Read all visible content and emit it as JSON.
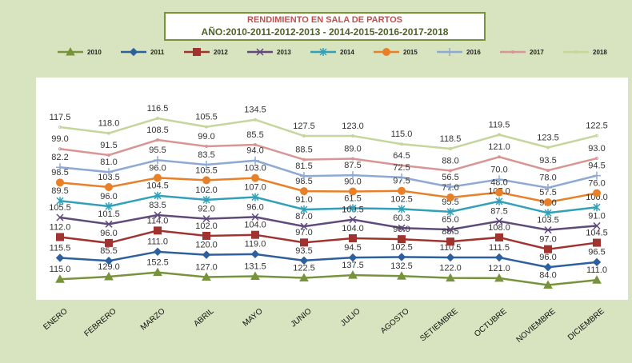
{
  "chart_data": {
    "type": "line",
    "stacked": true,
    "title": "RENDIMIENTO EN SALA DE PARTOS",
    "subtitle": "AÑO:2010-2011-2012-2013 - 2014-2015-2016-2017-2018",
    "categories": [
      "ENERO",
      "FEBRERO",
      "MARZO",
      "ABRIL",
      "MAYO",
      "JUNIO",
      "JULIO",
      "AGOSTO",
      "SETIEMBRE",
      "OCTUBRE",
      "NOVIEMBRE",
      "DICIEMBRE"
    ],
    "series": [
      {
        "name": "2010",
        "color": "#77933c",
        "marker": "triangle",
        "values": [
          115,
          129,
          152.5,
          127,
          131.5,
          122.5,
          137.5,
          132.5,
          122,
          121,
          84,
          111
        ],
        "value_labels": [
          "115.0",
          "129.0",
          "152.5",
          "127.0",
          "131.5",
          "122.5",
          "137.5",
          "132.5",
          "122.0",
          "121.0",
          "84.0",
          "111.0"
        ]
      },
      {
        "name": "2011",
        "color": "#2e5f9e",
        "marker": "diamond",
        "values": [
          115.5,
          85.5,
          111,
          120,
          119,
          93.5,
          94.5,
          102.5,
          110.5,
          111.5,
          96,
          96.5
        ],
        "value_labels": [
          "115.5",
          "85.5",
          "111.0",
          "120.0",
          "119.0",
          "93.5",
          "94.5",
          "102.5",
          "110.5",
          "111.5",
          "96.0",
          "96.5"
        ]
      },
      {
        "name": "2012",
        "color": "#a0332f",
        "marker": "square",
        "values": [
          112,
          96,
          114,
          102,
          104,
          97,
          104,
          96,
          85.5,
          108,
          97,
          104.5
        ],
        "value_labels": [
          "112.0",
          "96.0",
          "114.0",
          "102.0",
          "104.0",
          "97.0",
          "104.0",
          "96.0",
          "85.5",
          "108.0",
          "97.0",
          "104.5"
        ]
      },
      {
        "name": "2013",
        "color": "#604a7b",
        "marker": "x",
        "values": [
          105.5,
          101.5,
          83.5,
          92,
          96,
          87,
          100.5,
          60.3,
          65,
          87.5,
          103.5,
          91
        ],
        "value_labels": [
          "105.5",
          "101.5",
          "83.5",
          "92.0",
          "96.0",
          "87.0",
          "100.5",
          "60.3",
          "65.0",
          "87.5",
          "103.5",
          "91.0"
        ]
      },
      {
        "name": "2014",
        "color": "#31a0b8",
        "marker": "star",
        "values": [
          89.5,
          96,
          104.5,
          102,
          107,
          91,
          61.5,
          102.5,
          95.5,
          107,
          92,
          100
        ],
        "value_labels": [
          "89.5",
          "96.0",
          "104.5",
          "102.0",
          "107.0",
          "91.0",
          "61.5",
          "102.5",
          "95.5",
          "107.0",
          "92.0",
          "100.0"
        ]
      },
      {
        "name": "2015",
        "color": "#e8802a",
        "marker": "circle",
        "values": [
          98.5,
          103.5,
          96,
          105.5,
          103,
          98.5,
          90,
          97.5,
          77,
          48,
          57.5,
          76
        ],
        "value_labels": [
          "98.5",
          "103.5",
          "96.0",
          "105.5",
          "103.0",
          "98.5",
          "90.0",
          "97.5",
          "77.0",
          "48.0",
          "57.5",
          "76.0"
        ]
      },
      {
        "name": "2016",
        "color": "#8ea9d4",
        "marker": "plus",
        "values": [
          82.2,
          81,
          95.5,
          83.5,
          94,
          81.5,
          87.5,
          72.5,
          56.5,
          70,
          78,
          94.5
        ],
        "value_labels": [
          "82.2",
          "81.0",
          "95.5",
          "83.5",
          "94.0",
          "81.5",
          "87.5",
          "72.5",
          "56.5",
          "70.0",
          "78.0",
          "94.5"
        ]
      },
      {
        "name": "2017",
        "color": "#d99594",
        "marker": "none",
        "values": [
          99,
          91.5,
          108.5,
          99,
          85.5,
          88.5,
          89,
          64.5,
          88,
          121,
          93.5,
          93
        ],
        "value_labels": [
          "99.0",
          "91.5",
          "108.5",
          "99.0",
          "85.5",
          "88.5",
          "89.0",
          "64.5",
          "88.0",
          "121.0",
          "93.5",
          "93.0"
        ]
      },
      {
        "name": "2018",
        "color": "#c3d69b",
        "marker": "none",
        "values": [
          117.5,
          118,
          116.5,
          105.5,
          134.5,
          127.5,
          123,
          115,
          118.5,
          119.5,
          123.5,
          122.5
        ],
        "value_labels": [
          "117.5",
          "118.0",
          "116.5",
          "105.5",
          "134.5",
          "127.5",
          "123.0",
          "115.0",
          "118.5",
          "119.5",
          "123.5",
          "122.5"
        ]
      }
    ]
  }
}
